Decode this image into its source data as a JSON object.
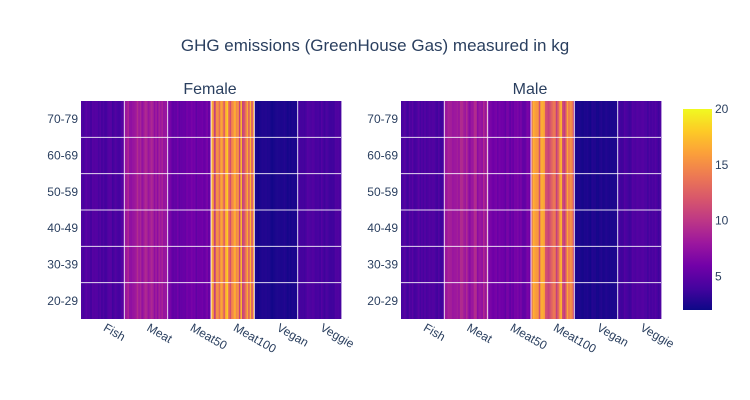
{
  "chart_data": {
    "type": "heatmap",
    "title": "GHG emissions (GreenHouse Gas) measured in kg",
    "panels": [
      {
        "subtitle": "Female"
      },
      {
        "subtitle": "Male"
      }
    ],
    "x_categories": [
      "Fish",
      "Meat",
      "Meat50",
      "Meat100",
      "Vegan",
      "Veggie"
    ],
    "y_categories": [
      "20-29",
      "30-39",
      "40-49",
      "50-59",
      "60-69",
      "70-79"
    ],
    "typical_values": {
      "Fish": 4.3,
      "Meat": 8.2,
      "Meat50": 5.8,
      "Meat100": 14.0,
      "Vegan": 2.5,
      "Veggie": 4.2
    },
    "colorbar": {
      "range": [
        2,
        20
      ],
      "ticks": [
        5,
        10,
        15,
        20
      ],
      "colorscale": [
        "#0d0887",
        "#46039f",
        "#7201a8",
        "#9c179e",
        "#bd3786",
        "#d8576b",
        "#ed7953",
        "#fb9f3a",
        "#fdca26",
        "#f0f921"
      ]
    },
    "grid": true
  }
}
